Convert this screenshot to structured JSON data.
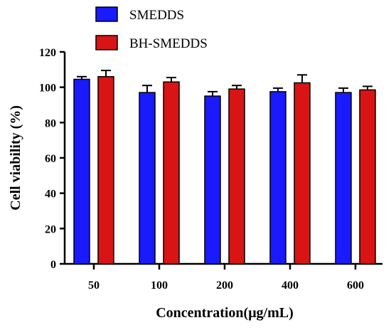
{
  "chart_data": {
    "type": "bar",
    "title": "",
    "xlabel": "Concentration(μg/mL)",
    "ylabel": "Cell viability (%)",
    "ylim": [
      0,
      120
    ],
    "yticks": [
      0,
      20,
      40,
      60,
      80,
      100,
      120
    ],
    "categories": [
      "50",
      "100",
      "200",
      "400",
      "600"
    ],
    "legend_position": "top-center",
    "grid": false,
    "series": [
      {
        "name": "SMEDDS",
        "color": "#1a1aff",
        "values": [
          104.5,
          97,
          95,
          97.5,
          97
        ],
        "errors": [
          1.5,
          4,
          2.5,
          2,
          2.5
        ]
      },
      {
        "name": "BH-SMEDDS",
        "color": "#d91414",
        "values": [
          106,
          103,
          99,
          102.5,
          98.5
        ],
        "errors": [
          3.5,
          2.5,
          2,
          4.5,
          2
        ]
      }
    ]
  }
}
